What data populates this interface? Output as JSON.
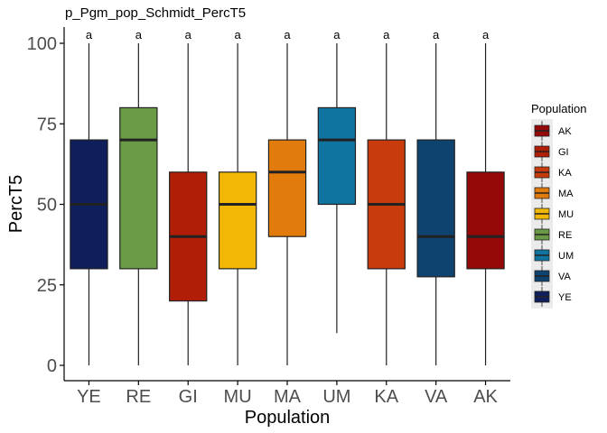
{
  "chart_data": {
    "type": "boxplot",
    "title": "p_Pgm_pop_Schmidt_PercT5",
    "xlabel": "Population",
    "ylabel": "PercT5",
    "ylim": [
      -5,
      105
    ],
    "yticks": [
      0,
      25,
      50,
      75,
      100
    ],
    "grid": false,
    "legend": {
      "title": "Population",
      "position": "right",
      "entries": [
        "AK",
        "GI",
        "KA",
        "MA",
        "MU",
        "RE",
        "UM",
        "VA",
        "YE"
      ]
    },
    "categories": [
      "YE",
      "RE",
      "GI",
      "MU",
      "MA",
      "UM",
      "KA",
      "VA",
      "AK"
    ],
    "group_labels": [
      "a",
      "a",
      "a",
      "a",
      "a",
      "a",
      "a",
      "a",
      "a"
    ],
    "boxes": [
      {
        "name": "YE",
        "min": 0,
        "q1": 30,
        "median": 50,
        "q3": 70,
        "max": 100,
        "color": "#0f1f5c"
      },
      {
        "name": "RE",
        "min": 0,
        "q1": 30,
        "median": 70,
        "q3": 80,
        "max": 100,
        "color": "#6a9a45"
      },
      {
        "name": "GI",
        "min": 0,
        "q1": 20,
        "median": 40,
        "q3": 60,
        "max": 100,
        "color": "#b01e08"
      },
      {
        "name": "MU",
        "min": 0,
        "q1": 30,
        "median": 50,
        "q3": 60,
        "max": 100,
        "color": "#f2b705"
      },
      {
        "name": "MA",
        "min": 0,
        "q1": 40,
        "median": 60,
        "q3": 70,
        "max": 100,
        "color": "#e07b0c"
      },
      {
        "name": "UM",
        "min": 10,
        "q1": 50,
        "median": 70,
        "q3": 80,
        "max": 100,
        "color": "#0f74a0"
      },
      {
        "name": "KA",
        "min": 0,
        "q1": 30,
        "median": 50,
        "q3": 70,
        "max": 100,
        "color": "#c83b0c"
      },
      {
        "name": "VA",
        "min": 0,
        "q1": 27.5,
        "median": 40,
        "q3": 70,
        "max": 100,
        "color": "#0e4370"
      },
      {
        "name": "AK",
        "min": 0,
        "q1": 30,
        "median": 40,
        "q3": 60,
        "max": 100,
        "color": "#950808"
      }
    ],
    "legend_colors": {
      "AK": "#950808",
      "GI": "#b01e08",
      "KA": "#c83b0c",
      "MA": "#e07b0c",
      "MU": "#f2b705",
      "RE": "#6a9a45",
      "UM": "#0f74a0",
      "VA": "#0e4370",
      "YE": "#0f1f5c"
    }
  }
}
